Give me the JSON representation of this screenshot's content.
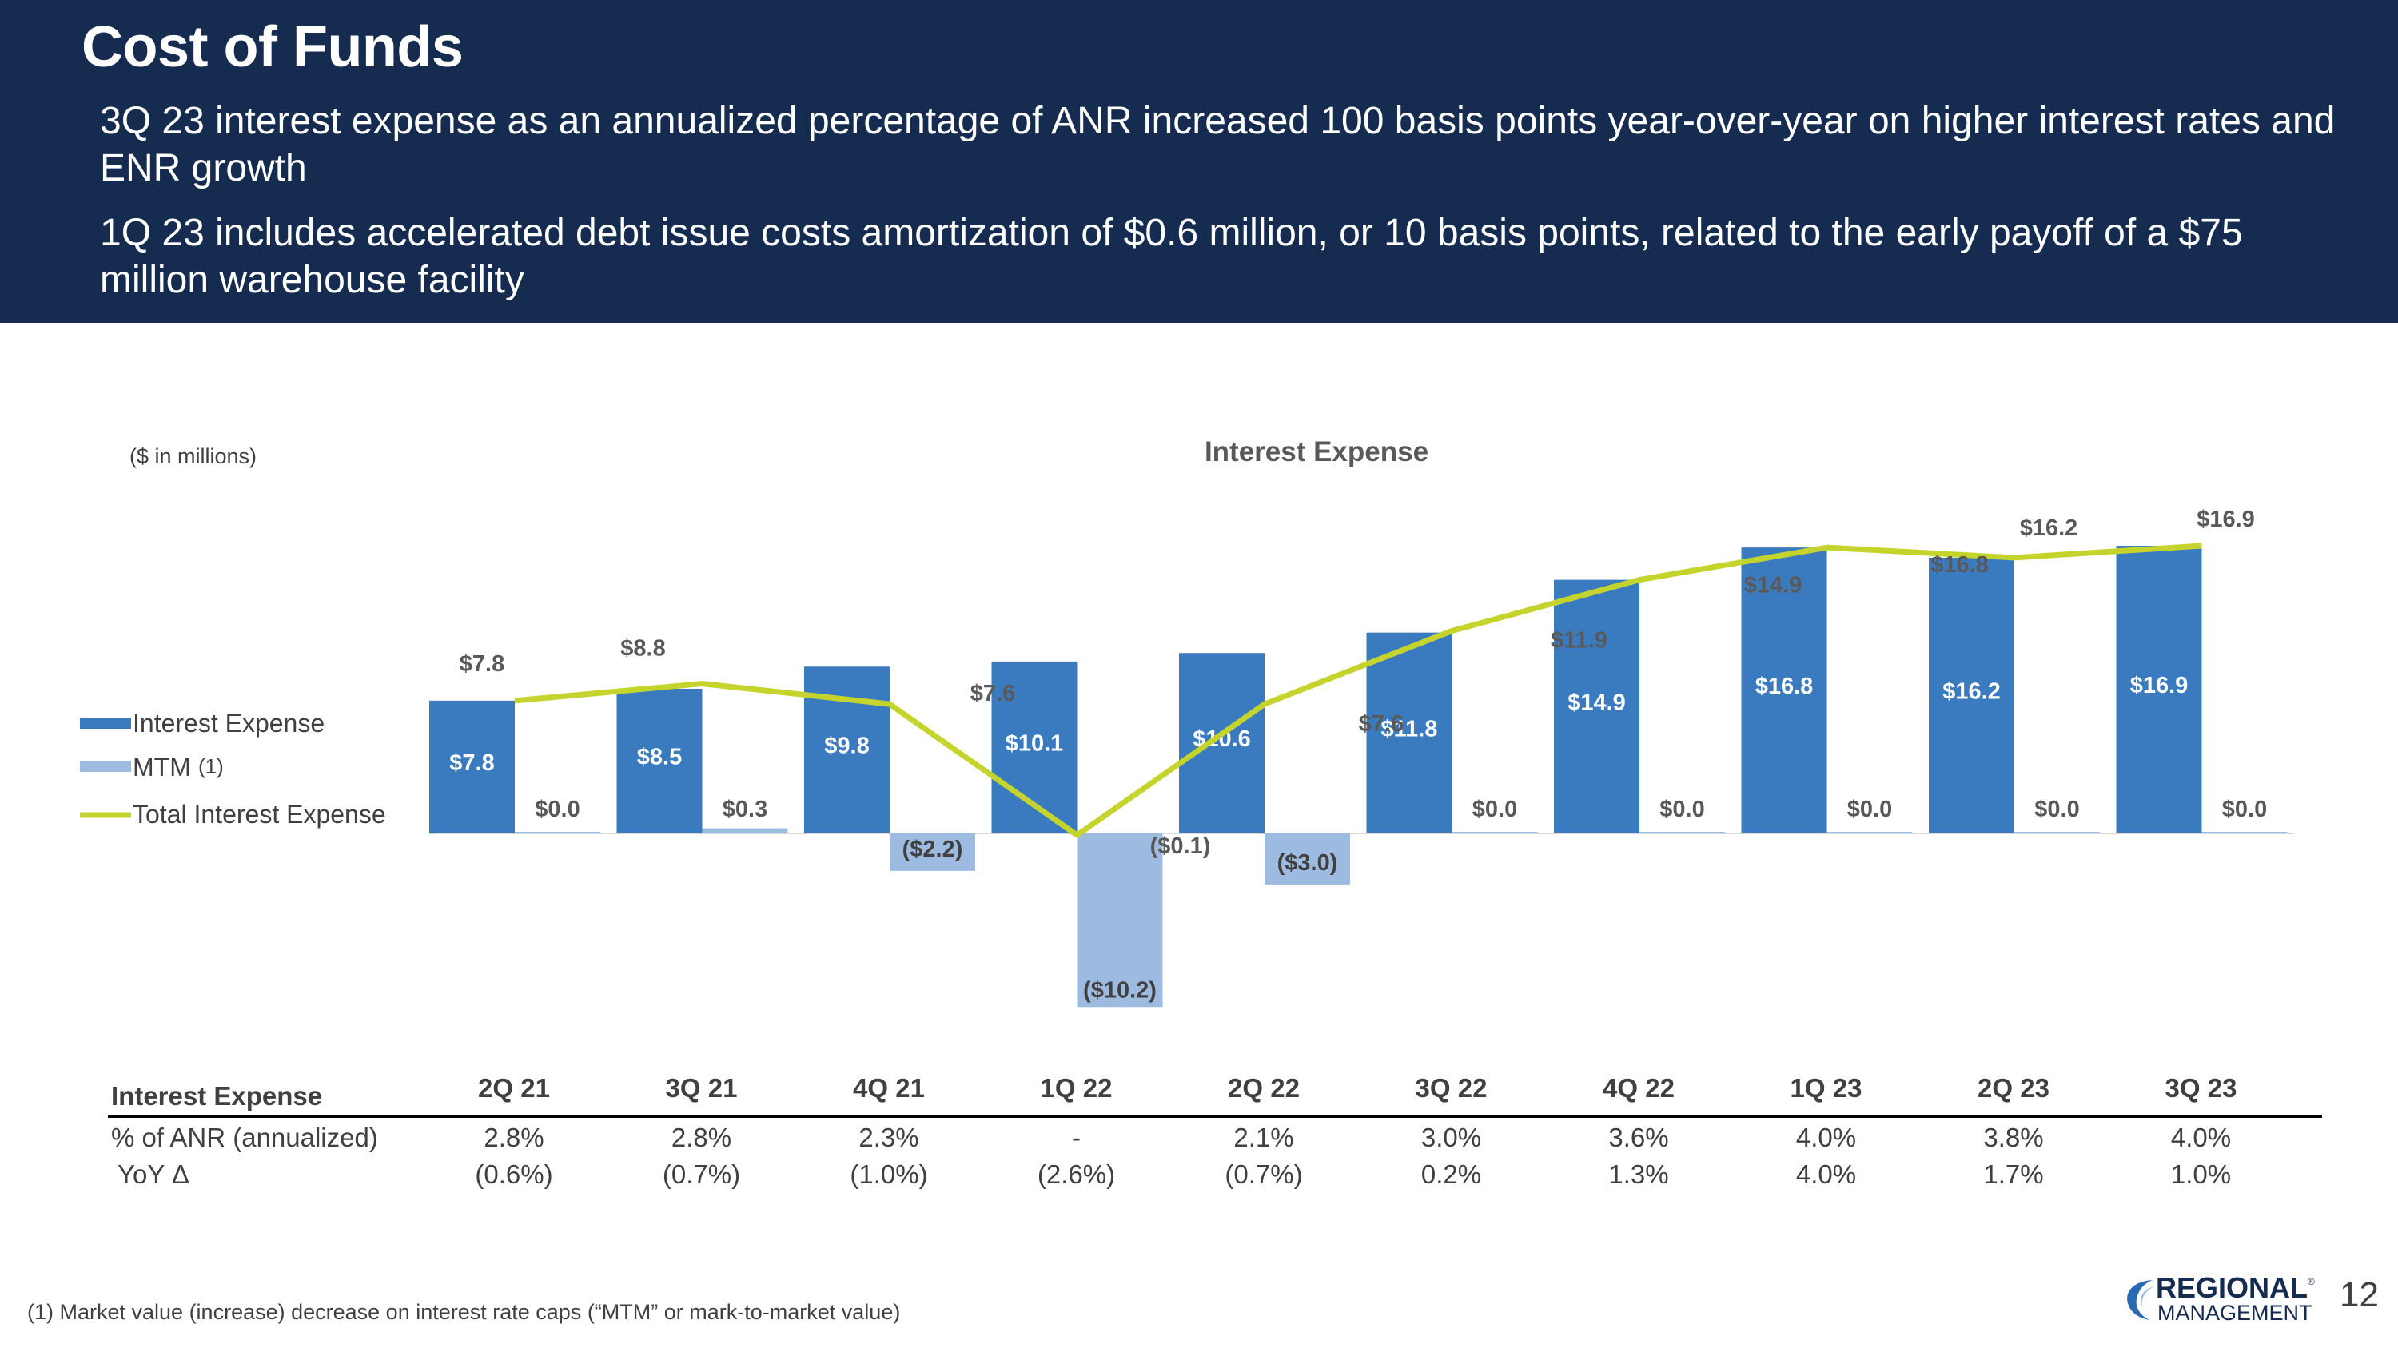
{
  "header": {
    "title": "Cost of Funds",
    "bullet1": "3Q 23 interest expense as an annualized percentage of ANR increased 100 basis points year-over-year on higher interest rates and ENR growth",
    "bullet2": "1Q 23 includes accelerated debt issue costs amortization of $0.6 million, or 10 basis points, related to the early payoff of a $75 million warehouse facility"
  },
  "chart_data": {
    "type": "bar",
    "title": "Interest Expense",
    "unit_note": "($ in millions)",
    "categories": [
      "2Q 21",
      "3Q 21",
      "4Q 21",
      "1Q 22",
      "2Q 22",
      "3Q 22",
      "4Q 22",
      "1Q 23",
      "2Q 23",
      "3Q 23"
    ],
    "ylim": [
      -12,
      18
    ],
    "legend_position": "left",
    "series": [
      {
        "name": "Interest Expense",
        "kind": "bar",
        "color": "#3a7bbf",
        "values": [
          7.8,
          8.5,
          9.8,
          10.1,
          10.6,
          11.8,
          14.9,
          16.8,
          16.2,
          16.9
        ],
        "labels": [
          "$7.8",
          "$8.5",
          "$9.8",
          "$10.1",
          "$10.6",
          "$11.8",
          "$14.9",
          "$16.8",
          "$16.2",
          "$16.9"
        ]
      },
      {
        "name": "MTM",
        "name_note": "(1)",
        "kind": "bar",
        "color": "#9dbbe0",
        "values": [
          0.0,
          0.3,
          -2.2,
          -10.2,
          -3.0,
          0.0,
          0.0,
          0.0,
          0.0,
          0.0
        ],
        "labels": [
          "$0.0",
          "$0.3",
          "($2.2)",
          "($10.2)",
          "($3.0)",
          "$0.0",
          "$0.0",
          "$0.0",
          "$0.0",
          "$0.0"
        ]
      },
      {
        "name": "Total Interest Expense",
        "kind": "line",
        "color": "#c5d42c",
        "values": [
          7.8,
          8.8,
          7.6,
          -0.1,
          7.6,
          11.9,
          14.9,
          16.8,
          16.2,
          16.9
        ],
        "labels": [
          "$7.8",
          "$8.8",
          "$7.6",
          "($0.1)",
          "$7.6",
          "$11.9",
          "$14.9",
          "$16.8",
          "$16.2",
          "$16.9"
        ]
      }
    ]
  },
  "table": {
    "heading": "Interest Expense",
    "rows": [
      {
        "label": "% of ANR (annualized)",
        "values": [
          "2.8%",
          "2.8%",
          "2.3%",
          "-",
          "2.1%",
          "3.0%",
          "3.6%",
          "4.0%",
          "3.8%",
          "4.0%"
        ]
      },
      {
        "label": "YoY Δ",
        "values": [
          "(0.6%)",
          "(0.7%)",
          "(1.0%)",
          "(2.6%)",
          "(0.7%)",
          "0.2%",
          "1.3%",
          "4.0%",
          "1.7%",
          "1.0%"
        ]
      }
    ]
  },
  "footnote": "(1) Market value (increase) decrease on interest rate caps (“MTM” or mark-to-market value)",
  "logo": {
    "line1": "REGIONAL",
    "line2": "MANAGEMENT",
    "trademark": "®"
  },
  "page_number": "12"
}
